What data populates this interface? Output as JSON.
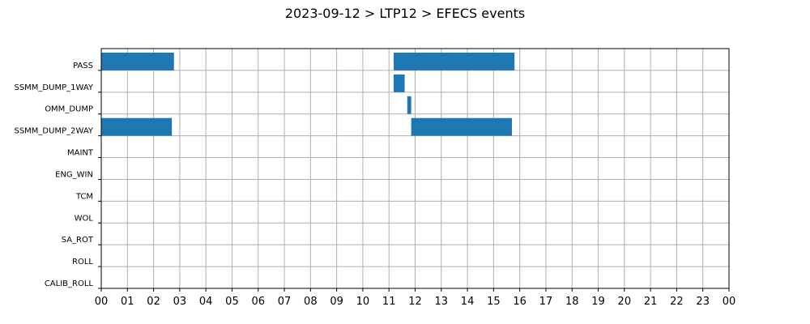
{
  "chart_data": {
    "type": "bar",
    "orientation": "horizontal-timeline",
    "title": "2023-09-12 > LTP12 > EFECS events",
    "xlabel": "",
    "ylabel": "",
    "xlim": [
      0,
      24
    ],
    "x_tick_labels": [
      "00",
      "01",
      "02",
      "03",
      "04",
      "05",
      "06",
      "07",
      "08",
      "09",
      "10",
      "11",
      "12",
      "13",
      "14",
      "15",
      "16",
      "17",
      "18",
      "19",
      "20",
      "21",
      "22",
      "23",
      "00"
    ],
    "categories": [
      "PASS",
      "SSMM_DUMP_1WAY",
      "OMM_DUMP",
      "SSMM_DUMP_2WAY",
      "MAINT",
      "ENG_WIN",
      "TCM",
      "WOL",
      "SA_ROT",
      "ROLL",
      "CALIB_ROLL"
    ],
    "grid": true,
    "bar_color": "#1f77b4",
    "events": [
      {
        "category": "PASS",
        "start": 0.0,
        "end": 2.78
      },
      {
        "category": "PASS",
        "start": 11.18,
        "end": 15.8
      },
      {
        "category": "SSMM_DUMP_1WAY",
        "start": 11.18,
        "end": 11.6
      },
      {
        "category": "OMM_DUMP",
        "start": 11.7,
        "end": 11.85
      },
      {
        "category": "SSMM_DUMP_2WAY",
        "start": 0.0,
        "end": 2.7
      },
      {
        "category": "SSMM_DUMP_2WAY",
        "start": 11.85,
        "end": 15.7
      }
    ]
  }
}
